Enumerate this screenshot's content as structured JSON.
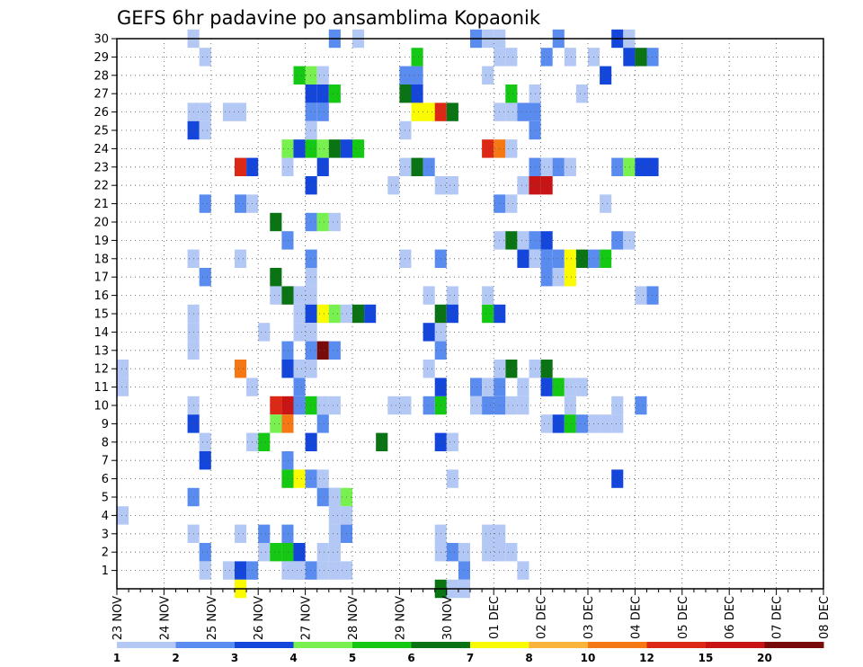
{
  "chart_data": {
    "type": "heatmap",
    "title": "GEFS 6hr padavine po ansamblima Kopaonik",
    "xlabel": "",
    "ylabel": "",
    "x_tick_labels": [
      "23 NOV",
      "24 NOV",
      "25 NOV",
      "26 NOV",
      "27 NOV",
      "28 NOV",
      "29 NOV",
      "30 NOV",
      "01 DEC",
      "02 DEC",
      "03 DEC",
      "04 DEC",
      "05 DEC",
      "06 DEC",
      "07 DEC",
      "08 DEC"
    ],
    "x_range": [
      "23 NOV 00Z",
      "08 DEC 00Z"
    ],
    "time_step_hours": 6,
    "y_tick_labels": [
      "1",
      "2",
      "3",
      "4",
      "5",
      "6",
      "7",
      "8",
      "9",
      "10",
      "11",
      "12",
      "13",
      "14",
      "15",
      "16",
      "17",
      "18",
      "19",
      "20",
      "21",
      "22",
      "23",
      "24",
      "25",
      "26",
      "27",
      "28",
      "29",
      "30"
    ],
    "y_range": [
      0,
      30
    ],
    "grid": "dotted",
    "levels": [
      1,
      2,
      3,
      4,
      5,
      6,
      7,
      8,
      10,
      12,
      15,
      20
    ],
    "level_colors": [
      "#b4c8f5",
      "#5a8cf0",
      "#1446dc",
      "#78f050",
      "#14c814",
      "#0a7314",
      "#fafa00",
      "#fab43c",
      "#f57814",
      "#dc2814",
      "#c81414",
      "#780a0a"
    ],
    "colorbar_labels": [
      "1",
      "2",
      "3",
      "4",
      "5",
      "6",
      "7",
      "8",
      "10",
      "12",
      "15",
      "20"
    ],
    "cells_note": "each cell: [time index (6h steps from 23 NOV 00Z), ensemble member row, precipitation class index into levels]",
    "cells": [
      [
        0,
        12,
        0
      ],
      [
        0,
        11,
        0
      ],
      [
        0,
        4,
        0
      ],
      [
        6,
        30,
        0
      ],
      [
        7,
        29,
        0
      ],
      [
        6,
        26,
        0
      ],
      [
        7,
        26,
        0
      ],
      [
        6,
        25,
        2
      ],
      [
        7,
        25,
        0
      ],
      [
        7,
        21,
        1
      ],
      [
        6,
        18,
        0
      ],
      [
        7,
        17,
        1
      ],
      [
        6,
        15,
        0
      ],
      [
        6,
        14,
        0
      ],
      [
        6,
        13,
        0
      ],
      [
        6,
        10,
        0
      ],
      [
        6,
        9,
        2
      ],
      [
        7,
        8,
        0
      ],
      [
        7,
        7,
        2
      ],
      [
        6,
        5,
        1
      ],
      [
        6,
        3,
        0
      ],
      [
        7,
        2,
        1
      ],
      [
        7,
        1,
        0
      ],
      [
        9,
        26,
        0
      ],
      [
        10,
        26,
        0
      ],
      [
        10,
        23,
        9
      ],
      [
        11,
        23,
        2
      ],
      [
        10,
        21,
        1
      ],
      [
        11,
        21,
        0
      ],
      [
        10,
        18,
        0
      ],
      [
        10,
        12,
        8
      ],
      [
        11,
        11,
        0
      ],
      [
        11,
        8,
        0
      ],
      [
        12,
        8,
        4
      ],
      [
        10,
        3,
        0
      ],
      [
        9,
        1,
        0
      ],
      [
        10,
        1,
        2
      ],
      [
        11,
        1,
        1
      ],
      [
        10,
        0,
        6
      ],
      [
        12,
        14,
        0
      ],
      [
        12,
        2,
        0
      ],
      [
        12,
        3,
        1
      ],
      [
        13,
        2,
        4
      ],
      [
        14,
        2,
        4
      ],
      [
        15,
        2,
        2
      ],
      [
        14,
        3,
        1
      ],
      [
        14,
        1,
        0
      ],
      [
        15,
        1,
        0
      ],
      [
        13,
        20,
        5
      ],
      [
        14,
        19,
        1
      ],
      [
        13,
        16,
        0
      ],
      [
        14,
        16,
        5
      ],
      [
        13,
        17,
        5
      ],
      [
        14,
        12,
        2
      ],
      [
        14,
        13,
        1
      ],
      [
        14,
        10,
        10
      ],
      [
        15,
        10,
        1
      ],
      [
        13,
        10,
        9
      ],
      [
        13,
        9,
        3
      ],
      [
        14,
        9,
        8
      ],
      [
        14,
        6,
        4
      ],
      [
        15,
        6,
        6
      ],
      [
        16,
        6,
        1
      ],
      [
        14,
        7,
        1
      ],
      [
        14,
        23,
        0
      ],
      [
        14,
        24,
        3
      ],
      [
        15,
        24,
        2
      ],
      [
        16,
        24,
        4
      ],
      [
        17,
        24,
        3
      ],
      [
        18,
        24,
        5
      ],
      [
        19,
        24,
        2
      ],
      [
        20,
        24,
        4
      ],
      [
        15,
        28,
        4
      ],
      [
        16,
        28,
        3
      ],
      [
        17,
        28,
        0
      ],
      [
        16,
        27,
        2
      ],
      [
        17,
        27,
        2
      ],
      [
        18,
        27,
        4
      ],
      [
        16,
        26,
        1
      ],
      [
        17,
        26,
        1
      ],
      [
        16,
        25,
        0
      ],
      [
        16,
        22,
        2
      ],
      [
        16,
        20,
        1
      ],
      [
        17,
        20,
        3
      ],
      [
        18,
        20,
        0
      ],
      [
        16,
        18,
        1
      ],
      [
        16,
        17,
        0
      ],
      [
        15,
        16,
        0
      ],
      [
        16,
        16,
        0
      ],
      [
        15,
        15,
        0
      ],
      [
        16,
        15,
        2
      ],
      [
        17,
        15,
        6
      ],
      [
        18,
        15,
        3
      ],
      [
        19,
        15,
        0
      ],
      [
        20,
        15,
        5
      ],
      [
        21,
        15,
        2
      ],
      [
        15,
        14,
        0
      ],
      [
        16,
        14,
        0
      ],
      [
        16,
        13,
        1
      ],
      [
        17,
        13,
        11
      ],
      [
        18,
        13,
        1
      ],
      [
        15,
        12,
        0
      ],
      [
        16,
        12,
        0
      ],
      [
        15,
        11,
        1
      ],
      [
        16,
        10,
        4
      ],
      [
        17,
        10,
        0
      ],
      [
        18,
        10,
        0
      ],
      [
        17,
        9,
        1
      ],
      [
        16,
        8,
        2
      ],
      [
        17,
        23,
        2
      ],
      [
        17,
        6,
        0
      ],
      [
        17,
        5,
        1
      ],
      [
        18,
        5,
        1
      ],
      [
        19,
        5,
        3
      ],
      [
        18,
        4,
        0
      ],
      [
        19,
        4,
        0
      ],
      [
        18,
        3,
        0
      ],
      [
        19,
        3,
        1
      ],
      [
        17,
        2,
        0
      ],
      [
        16,
        1,
        1
      ],
      [
        17,
        1,
        0
      ],
      [
        18,
        1,
        0
      ],
      [
        15,
        1,
        0
      ],
      [
        18,
        30,
        1
      ],
      [
        20,
        30,
        0
      ],
      [
        18,
        5,
        0
      ],
      [
        18,
        2,
        0
      ],
      [
        19,
        1,
        0
      ],
      [
        24,
        28,
        1
      ],
      [
        25,
        28,
        1
      ],
      [
        25,
        27,
        2
      ],
      [
        24,
        27,
        5
      ],
      [
        26,
        26,
        6
      ],
      [
        27,
        26,
        9
      ],
      [
        28,
        26,
        5
      ],
      [
        25,
        26,
        6
      ],
      [
        24,
        25,
        0
      ],
      [
        24,
        23,
        0
      ],
      [
        25,
        23,
        5
      ],
      [
        26,
        23,
        1
      ],
      [
        23,
        22,
        0
      ],
      [
        27,
        22,
        0
      ],
      [
        28,
        22,
        0
      ],
      [
        24,
        18,
        0
      ],
      [
        27,
        18,
        1
      ],
      [
        23,
        10,
        0
      ],
      [
        24,
        10,
        0
      ],
      [
        26,
        10,
        1
      ],
      [
        27,
        10,
        4
      ],
      [
        27,
        11,
        2
      ],
      [
        26,
        12,
        0
      ],
      [
        27,
        14,
        0
      ],
      [
        27,
        13,
        1
      ],
      [
        26,
        14,
        2
      ],
      [
        27,
        15,
        5
      ],
      [
        28,
        16,
        0
      ],
      [
        28,
        15,
        2
      ],
      [
        26,
        16,
        0
      ],
      [
        25,
        29,
        4
      ],
      [
        22,
        8,
        5
      ],
      [
        27,
        8,
        2
      ],
      [
        28,
        8,
        0
      ],
      [
        28,
        6,
        0
      ],
      [
        27,
        3,
        0
      ],
      [
        27,
        2,
        0
      ],
      [
        28,
        2,
        1
      ],
      [
        29,
        2,
        0
      ],
      [
        29,
        1,
        1
      ],
      [
        27,
        0,
        5
      ],
      [
        28,
        0,
        0
      ],
      [
        29,
        0,
        0
      ],
      [
        30,
        11,
        1
      ],
      [
        30,
        10,
        0
      ],
      [
        31,
        10,
        1
      ],
      [
        31,
        11,
        0
      ],
      [
        32,
        11,
        1
      ],
      [
        32,
        10,
        1
      ],
      [
        33,
        10,
        0
      ],
      [
        34,
        10,
        0
      ],
      [
        34,
        11,
        0
      ],
      [
        33,
        12,
        5
      ],
      [
        32,
        12,
        0
      ],
      [
        35,
        12,
        0
      ],
      [
        36,
        12,
        5
      ],
      [
        36,
        11,
        2
      ],
      [
        37,
        11,
        4
      ],
      [
        38,
        11,
        0
      ],
      [
        39,
        11,
        0
      ],
      [
        38,
        10,
        0
      ],
      [
        36,
        9,
        0
      ],
      [
        37,
        9,
        2
      ],
      [
        38,
        9,
        4
      ],
      [
        39,
        9,
        1
      ],
      [
        40,
        9,
        0
      ],
      [
        41,
        9,
        0
      ],
      [
        42,
        9,
        0
      ],
      [
        31,
        15,
        4
      ],
      [
        32,
        15,
        2
      ],
      [
        31,
        16,
        0
      ],
      [
        32,
        26,
        0
      ],
      [
        33,
        26,
        0
      ],
      [
        34,
        26,
        1
      ],
      [
        35,
        26,
        1
      ],
      [
        35,
        25,
        1
      ],
      [
        31,
        24,
        9
      ],
      [
        32,
        24,
        8
      ],
      [
        33,
        24,
        0
      ],
      [
        33,
        27,
        4
      ],
      [
        35,
        27,
        0
      ],
      [
        34,
        22,
        0
      ],
      [
        35,
        22,
        10
      ],
      [
        36,
        22,
        10
      ],
      [
        35,
        23,
        1
      ],
      [
        36,
        23,
        0
      ],
      [
        32,
        21,
        1
      ],
      [
        33,
        21,
        0
      ],
      [
        32,
        19,
        0
      ],
      [
        33,
        19,
        5
      ],
      [
        34,
        19,
        0
      ],
      [
        35,
        19,
        1
      ],
      [
        36,
        19,
        2
      ],
      [
        34,
        18,
        2
      ],
      [
        35,
        18,
        0
      ],
      [
        36,
        18,
        1
      ],
      [
        37,
        18,
        1
      ],
      [
        38,
        18,
        6
      ],
      [
        39,
        18,
        5
      ],
      [
        40,
        18,
        1
      ],
      [
        41,
        18,
        4
      ],
      [
        36,
        17,
        1
      ],
      [
        37,
        17,
        0
      ],
      [
        38,
        17,
        6
      ],
      [
        36,
        29,
        1
      ],
      [
        37,
        30,
        1
      ],
      [
        38,
        29,
        0
      ],
      [
        39,
        27,
        0
      ],
      [
        31,
        28,
        0
      ],
      [
        30,
        30,
        1
      ],
      [
        31,
        30,
        0
      ],
      [
        32,
        30,
        0
      ],
      [
        32,
        29,
        0
      ],
      [
        33,
        29,
        0
      ],
      [
        31,
        3,
        0
      ],
      [
        32,
        3,
        0
      ],
      [
        31,
        2,
        0
      ],
      [
        32,
        2,
        0
      ],
      [
        33,
        2,
        0
      ],
      [
        34,
        1,
        0
      ],
      [
        36,
        23,
        0
      ],
      [
        37,
        23,
        1
      ],
      [
        38,
        23,
        0
      ],
      [
        42,
        30,
        2
      ],
      [
        43,
        30,
        0
      ],
      [
        43,
        29,
        2
      ],
      [
        44,
        29,
        5
      ],
      [
        45,
        29,
        1
      ],
      [
        41,
        28,
        2
      ],
      [
        40,
        29,
        0
      ],
      [
        42,
        23,
        1
      ],
      [
        43,
        23,
        3
      ],
      [
        44,
        23,
        2
      ],
      [
        45,
        23,
        2
      ],
      [
        41,
        21,
        0
      ],
      [
        42,
        19,
        1
      ],
      [
        43,
        19,
        0
      ],
      [
        44,
        16,
        0
      ],
      [
        45,
        16,
        1
      ],
      [
        42,
        10,
        0
      ],
      [
        42,
        6,
        2
      ],
      [
        44,
        10,
        1
      ]
    ]
  }
}
